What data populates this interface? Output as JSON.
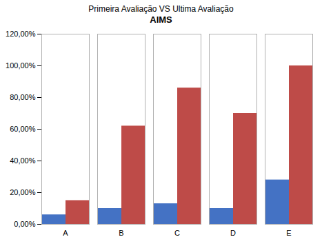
{
  "chart_data": {
    "type": "bar",
    "title": "Primeira Avaliação VS Ultima Avaliação",
    "subtitle": "AIMS",
    "categories": [
      "A",
      "B",
      "C",
      "D",
      "E"
    ],
    "series": [
      {
        "color": "#4472C4",
        "values": [
          0.06,
          0.1,
          0.13,
          0.1,
          0.28
        ]
      },
      {
        "color": "#BE4B48",
        "values": [
          0.15,
          0.62,
          0.86,
          0.7,
          1.0
        ]
      }
    ],
    "ylim": [
      0,
      1.2
    ],
    "yticks": [
      {
        "value": 0.0,
        "label": "0,00%"
      },
      {
        "value": 0.2,
        "label": "20,00%"
      },
      {
        "value": 0.4,
        "label": "40,00%"
      },
      {
        "value": 0.6,
        "label": "60,00%"
      },
      {
        "value": 0.8,
        "label": "80,00%"
      },
      {
        "value": 1.0,
        "label": "100,00%"
      },
      {
        "value": 1.2,
        "label": "120,00%"
      }
    ],
    "grid": false
  }
}
